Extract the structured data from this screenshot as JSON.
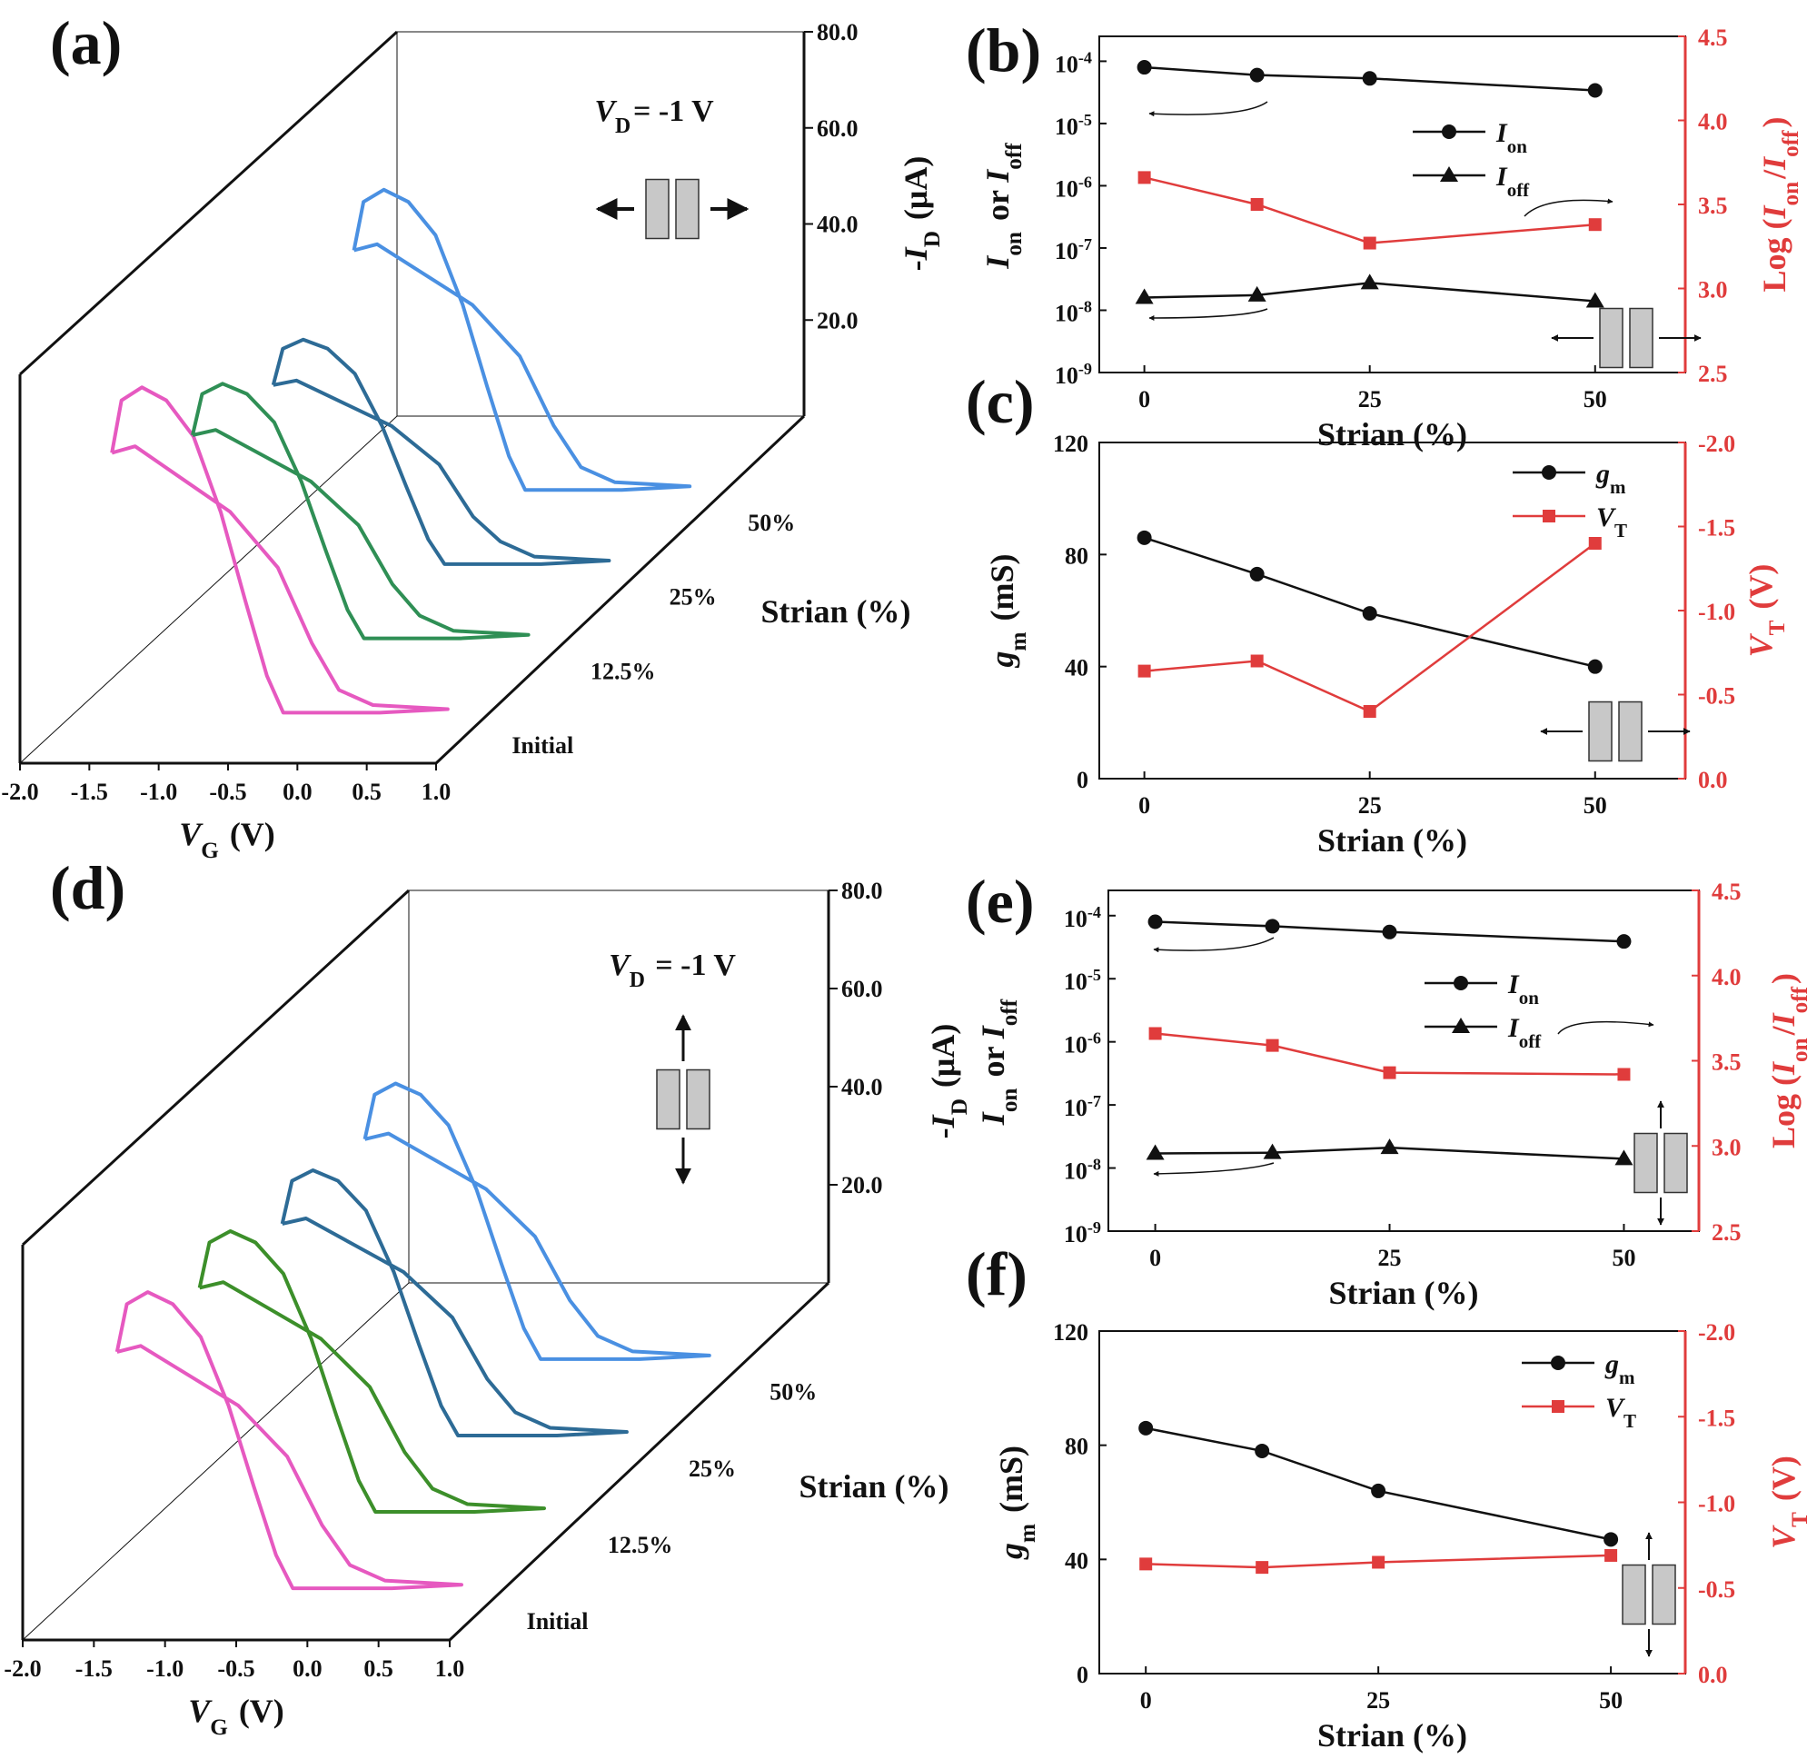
{
  "colors": {
    "black": "#111111",
    "red": "#e03c3c",
    "initial": "#e659c0",
    "s12": "#2f8f55",
    "s25": "#2d6b96",
    "s50": "#4a90e2",
    "s12_d": "#3c8f2a",
    "device": "#c8c8c8"
  },
  "chart_data": [
    {
      "id": "a",
      "type": "line",
      "panel_label": "(a)",
      "annotation_vd": "V_D= -1 V",
      "xlabel": "V_G (V)",
      "zlabel": "-I_D (μA)",
      "depth_label": "Strian (%)",
      "x_ticks": [
        "-2.0",
        "-1.5",
        "-1.0",
        "-0.5",
        "0.0",
        "0.5",
        "1.0"
      ],
      "z_ticks": [
        "20.0",
        "40.0",
        "60.0",
        "80.0"
      ],
      "xlim": [
        -2.0,
        1.0
      ],
      "zlim": [
        0,
        80
      ],
      "strain_direction": "horizontal",
      "series": [
        {
          "name": "Initial",
          "color_key": "initial",
          "peak_vg": -1.4,
          "peak_id": 65
        },
        {
          "name": "12.5%",
          "color_key": "s12",
          "peak_vg": -1.4,
          "peak_id": 51
        },
        {
          "name": "25%",
          "color_key": "s25",
          "peak_vg": -1.4,
          "peak_id": 45
        },
        {
          "name": "50%",
          "color_key": "s50",
          "peak_vg": -1.4,
          "peak_id": 60
        }
      ]
    },
    {
      "id": "b",
      "type": "line",
      "panel_label": "(b)",
      "x": [
        0,
        12.5,
        25,
        50
      ],
      "xlabel": "Strian (%)",
      "x_ticks": [
        0,
        25,
        50
      ],
      "xlim": [
        -5,
        60
      ],
      "ylabel_left": "I_on or I_off",
      "ylabel_right": "Log (I_on/I_off)",
      "y_left_scale": "log",
      "y_left_exp_range": [
        -9,
        -3.6
      ],
      "y_left_ticks": [
        "10^-9",
        "10^-8",
        "10^-7",
        "10^-6",
        "10^-5",
        "10^-4"
      ],
      "y_right_range": [
        2.5,
        4.5
      ],
      "y_right_ticks": [
        "2.5",
        "3.0",
        "3.5",
        "4.0",
        "4.5"
      ],
      "series": [
        {
          "name": "I_on",
          "axis": "left",
          "marker": "circle",
          "values": [
            8e-05,
            6e-05,
            5.3e-05,
            3.4e-05
          ]
        },
        {
          "name": "I_off",
          "axis": "left",
          "marker": "triangle",
          "values": [
            1.6e-08,
            1.75e-08,
            2.75e-08,
            1.4e-08
          ]
        },
        {
          "name": "Log (I_on/I_off)",
          "axis": "right",
          "marker": "square",
          "values": [
            3.66,
            3.5,
            3.27,
            3.38
          ]
        }
      ],
      "strain_direction": "horizontal"
    },
    {
      "id": "c",
      "type": "line",
      "panel_label": "(c)",
      "x": [
        0,
        12.5,
        25,
        50
      ],
      "xlabel": "Strian (%)",
      "x_ticks": [
        0,
        25,
        50
      ],
      "xlim": [
        -5,
        60
      ],
      "ylabel_left": "g_m (mS)",
      "ylabel_right": "V_T (V)",
      "y_left_range": [
        0,
        120
      ],
      "y_left_ticks": [
        "0",
        "40",
        "80",
        "120"
      ],
      "y_right_range": [
        0,
        -2.0
      ],
      "y_right_ticks": [
        "0.0",
        "-0.5",
        "-1.0",
        "-1.5",
        "-2.0"
      ],
      "series": [
        {
          "name": "g_m",
          "axis": "left",
          "marker": "circle",
          "values": [
            86,
            73,
            59,
            40
          ]
        },
        {
          "name": "V_T",
          "axis": "right",
          "marker": "square",
          "values": [
            -0.64,
            -0.7,
            -0.4,
            -1.4
          ]
        }
      ],
      "strain_direction": "horizontal"
    },
    {
      "id": "d",
      "type": "line",
      "panel_label": "(d)",
      "annotation_vd": "V_D = -1 V",
      "xlabel": "V_G (V)",
      "zlabel": "-I_D (μA)",
      "depth_label": "Strian (%)",
      "x_ticks": [
        "-2.0",
        "-1.5",
        "-1.0",
        "-0.5",
        "0.0",
        "0.5",
        "1.0"
      ],
      "z_ticks": [
        "20.0",
        "40.0",
        "60.0",
        "80.0"
      ],
      "xlim": [
        -2.0,
        1.0
      ],
      "zlim": [
        0,
        80
      ],
      "strain_direction": "vertical",
      "series": [
        {
          "name": "Initial",
          "color_key": "initial",
          "peak_vg": -1.4,
          "peak_id": 58
        },
        {
          "name": "12.5%",
          "color_key": "s12_d",
          "peak_vg": -1.4,
          "peak_id": 55
        },
        {
          "name": "25%",
          "color_key": "s25",
          "peak_vg": -1.4,
          "peak_id": 52
        },
        {
          "name": "50%",
          "color_key": "s50",
          "peak_vg": -1.4,
          "peak_id": 54
        }
      ]
    },
    {
      "id": "e",
      "type": "line",
      "panel_label": "(e)",
      "x": [
        0,
        12.5,
        25,
        50
      ],
      "xlabel": "Strian (%)",
      "x_ticks": [
        0,
        25,
        50
      ],
      "xlim": [
        -5,
        58
      ],
      "ylabel_left": "I_on or I_off",
      "ylabel_right": "Log (I_on/I_off)",
      "y_left_scale": "log",
      "y_left_exp_range": [
        -9,
        -3.6
      ],
      "y_left_ticks": [
        "10^-9",
        "10^-8",
        "10^-7",
        "10^-6",
        "10^-5",
        "10^-4"
      ],
      "y_right_range": [
        2.5,
        4.5
      ],
      "y_right_ticks": [
        "2.5",
        "3.0",
        "3.5",
        "4.0",
        "4.5"
      ],
      "series": [
        {
          "name": "I_on",
          "axis": "left",
          "marker": "circle",
          "values": [
            8e-05,
            6.8e-05,
            5.5e-05,
            3.9e-05
          ]
        },
        {
          "name": "I_off",
          "axis": "left",
          "marker": "triangle",
          "values": [
            1.7e-08,
            1.75e-08,
            2.1e-08,
            1.4e-08
          ]
        },
        {
          "name": "Log (I_on/I_off)",
          "axis": "right",
          "marker": "square",
          "values": [
            3.66,
            3.59,
            3.43,
            3.42
          ]
        }
      ],
      "strain_direction": "vertical"
    },
    {
      "id": "f",
      "type": "line",
      "panel_label": "(f)",
      "x": [
        0,
        12.5,
        25,
        50
      ],
      "xlabel": "Strian (%)",
      "x_ticks": [
        0,
        25,
        50
      ],
      "xlim": [
        -5,
        58
      ],
      "ylabel_left": "g_m (mS)",
      "ylabel_right": "V_T (V)",
      "y_left_range": [
        0,
        120
      ],
      "y_left_ticks": [
        "0",
        "40",
        "80",
        "120"
      ],
      "y_right_range": [
        0,
        -2.0
      ],
      "y_right_ticks": [
        "0.0",
        "-0.5",
        "-1.0",
        "-1.5",
        "-2.0"
      ],
      "series": [
        {
          "name": "g_m",
          "axis": "left",
          "marker": "circle",
          "values": [
            86,
            78,
            64,
            47
          ]
        },
        {
          "name": "V_T",
          "axis": "right",
          "marker": "square",
          "values": [
            -0.64,
            -0.62,
            -0.65,
            -0.69
          ]
        }
      ],
      "strain_direction": "vertical"
    }
  ]
}
